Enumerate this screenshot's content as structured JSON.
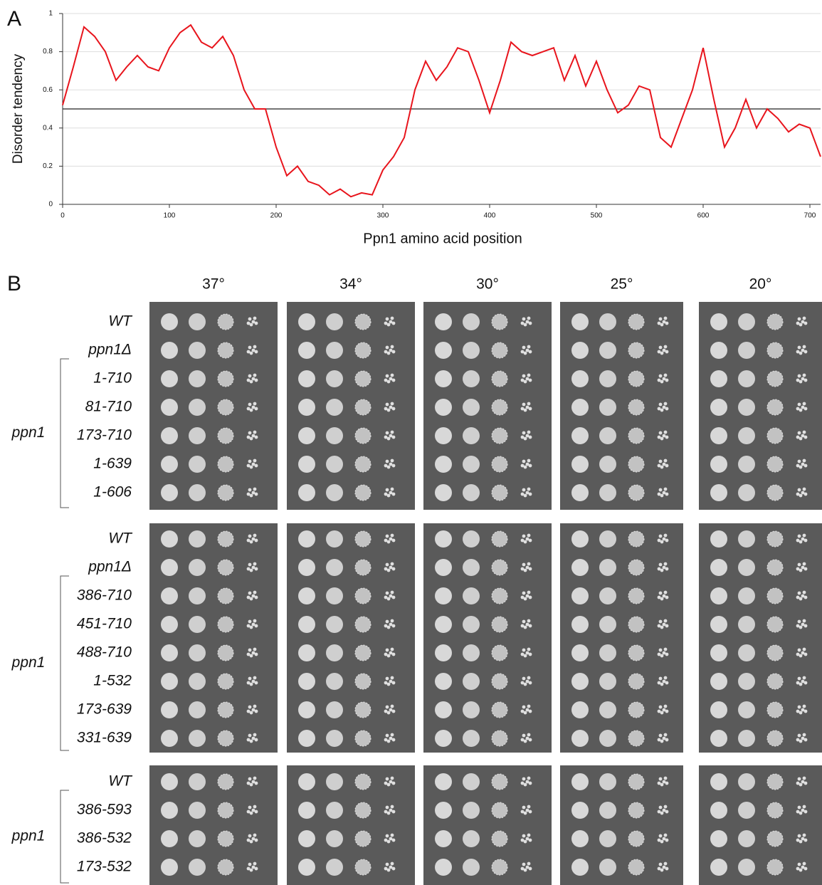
{
  "chart_data": {
    "type": "line",
    "panel_label": "A",
    "xlabel": "Ppn1 amino acid position",
    "ylabel": "Disorder tendency",
    "color": "#e8141c",
    "x": [
      0,
      10,
      20,
      30,
      40,
      50,
      60,
      70,
      80,
      90,
      100,
      110,
      120,
      130,
      140,
      150,
      160,
      170,
      180,
      190,
      200,
      210,
      220,
      230,
      240,
      250,
      260,
      270,
      280,
      290,
      300,
      310,
      320,
      330,
      340,
      350,
      360,
      370,
      380,
      390,
      400,
      410,
      420,
      430,
      440,
      450,
      460,
      470,
      480,
      490,
      500,
      510,
      520,
      530,
      540,
      550,
      560,
      570,
      580,
      590,
      600,
      610,
      620,
      630,
      640,
      650,
      660,
      670,
      680,
      690,
      700,
      710
    ],
    "values": [
      0.52,
      0.72,
      0.93,
      0.88,
      0.8,
      0.65,
      0.72,
      0.78,
      0.72,
      0.7,
      0.82,
      0.9,
      0.94,
      0.85,
      0.82,
      0.88,
      0.78,
      0.6,
      0.5,
      0.5,
      0.3,
      0.15,
      0.2,
      0.12,
      0.1,
      0.05,
      0.08,
      0.04,
      0.06,
      0.05,
      0.18,
      0.25,
      0.35,
      0.6,
      0.75,
      0.65,
      0.72,
      0.82,
      0.8,
      0.65,
      0.48,
      0.65,
      0.85,
      0.8,
      0.78,
      0.8,
      0.82,
      0.65,
      0.78,
      0.62,
      0.75,
      0.6,
      0.48,
      0.52,
      0.62,
      0.6,
      0.35,
      0.3,
      0.45,
      0.6,
      0.82,
      0.55,
      0.3,
      0.4,
      0.55,
      0.4,
      0.5,
      0.45,
      0.38,
      0.42,
      0.4,
      0.25
    ],
    "threshold": 0.5,
    "xlim": [
      0,
      710
    ],
    "ylim": [
      0,
      1
    ],
    "xticks": [
      0,
      100,
      200,
      300,
      400,
      500,
      600,
      700
    ],
    "yticks": [
      0,
      0.2,
      0.4,
      0.6,
      0.8,
      1
    ],
    "grid": true
  },
  "panel_b": {
    "panel_label": "B",
    "temperatures": [
      "37°",
      "34°",
      "30°",
      "25°",
      "20°"
    ],
    "groups": [
      {
        "rows": [
          "WT",
          "ppn1Δ",
          "1-710",
          "81-710",
          "173-710",
          "1-639",
          "1-606"
        ],
        "bracket_label": "ppn1"
      },
      {
        "rows": [
          "WT",
          "ppn1Δ",
          "386-710",
          "451-710",
          "488-710",
          "1-532",
          "173-639",
          "331-639"
        ],
        "bracket_label": "ppn1"
      },
      {
        "rows": [
          "WT",
          "386-593",
          "386-532",
          "173-532"
        ],
        "bracket_label": "ppn1"
      }
    ]
  }
}
